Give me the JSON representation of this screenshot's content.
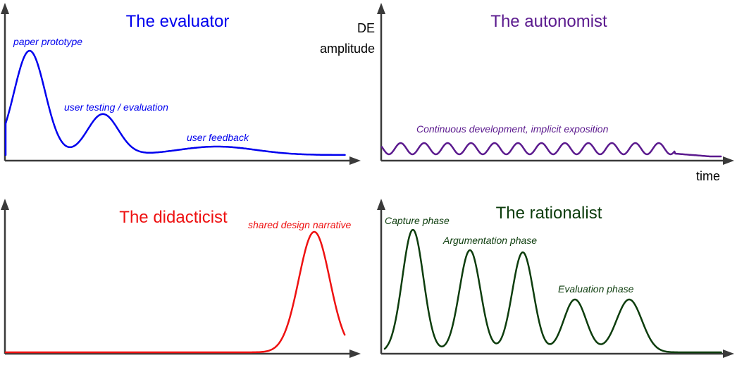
{
  "colors": {
    "evaluator": "#0000ee",
    "autonomist": "#5b1a8e",
    "didacticist": "#ee1111",
    "rationalist": "#0d3d0d",
    "axis": "#3a3a3a"
  },
  "axes": {
    "y_label_line1": "DE",
    "y_label_line2": "amplitude",
    "x_label": "time"
  },
  "panels": {
    "evaluator": {
      "title": "The evaluator",
      "annotations": [
        "paper prototype",
        "user testing / evaluation",
        "user feedback"
      ]
    },
    "autonomist": {
      "title": "The autonomist",
      "annotations": [
        "Continuous development, implicit exposition"
      ]
    },
    "didacticist": {
      "title": "The didacticist",
      "annotations": [
        "shared design narrative"
      ]
    },
    "rationalist": {
      "title": "The rationalist",
      "annotations": [
        "Capture phase",
        "Argumentation phase",
        "Evaluation phase"
      ]
    }
  }
}
